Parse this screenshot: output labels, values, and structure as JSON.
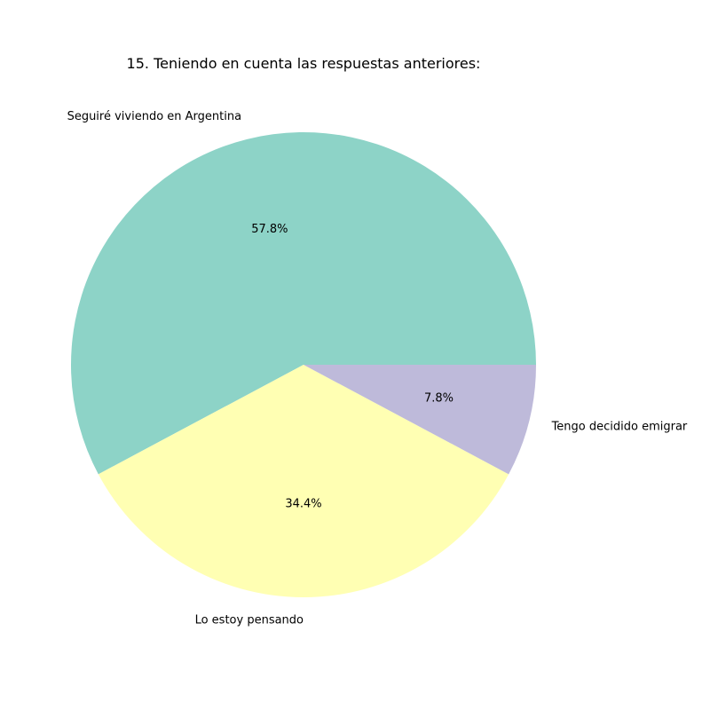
{
  "chart_data": {
    "type": "pie",
    "title": "15. Teniendo en cuenta las respuestas anteriores:",
    "categories": [
      "Seguiré viviendo en Argentina",
      "Lo estoy pensando",
      "Tengo decidido emigrar"
    ],
    "values": [
      57.8,
      34.4,
      7.8
    ],
    "value_labels": [
      "57.8%",
      "34.4%",
      "7.8%"
    ],
    "colors": [
      "#8dd3c7",
      "#ffffb3",
      "#bebada"
    ],
    "start_angle_deg": 0,
    "direction": "counterclockwise",
    "legend": "none"
  }
}
